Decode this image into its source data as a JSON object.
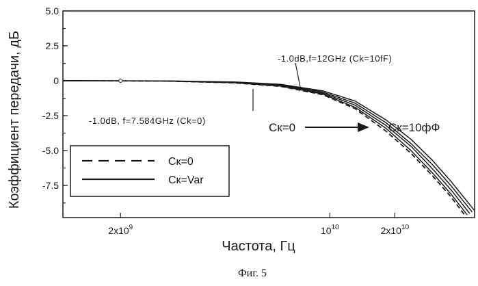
{
  "chart_data": {
    "type": "line",
    "title": "",
    "xlabel": "Частота, Гц",
    "ylabel": "Коэффициент передачи, дБ",
    "xscale": "log",
    "xlim": [
      2900000000.0,
      57000000000.0
    ],
    "ylim": [
      -9.8,
      5.0
    ],
    "grid": false,
    "yticks": [
      5.0,
      2.5,
      0,
      -2.5,
      -5.0,
      -7.5
    ],
    "ytick_labels": [
      "5.0",
      "2.5",
      "0",
      "-2.5",
      "-5.0",
      "-7.5"
    ],
    "xticks": [
      {
        "value": 4400000000.0,
        "base": "2x10",
        "exp": "9"
      },
      {
        "value": 20000000000.0,
        "base": "10",
        "exp": "10"
      },
      {
        "value": 32000000000.0,
        "base": "2x10",
        "exp": "10"
      }
    ],
    "legend": {
      "placement": "lower-left",
      "entries": [
        {
          "label": "Cк=0",
          "style": "dashed"
        },
        {
          "label": "Cк=Var",
          "style": "solid"
        }
      ]
    },
    "annotations": {
      "left": "-1.0dB, f=7.584GHz (Ck=0)",
      "right": "-1.0dB,f=12GHz (Ck=10fF)",
      "arrow_from": "Cк=0",
      "arrow_to": "Cк=10фФ"
    },
    "series": [
      {
        "style": "dashed",
        "f3db": 19300000000.0,
        "points": [
          [
            2900000000.0,
            0
          ],
          [
            6000000000.0,
            -0.02
          ],
          [
            10000000000.0,
            -0.15
          ],
          [
            14000000000.0,
            -0.4
          ],
          [
            19000000000.0,
            -1.0
          ],
          [
            24000000000.0,
            -2.0
          ],
          [
            30000000000.0,
            -3.6
          ],
          [
            36000000000.0,
            -5.2
          ],
          [
            42000000000.0,
            -6.8
          ],
          [
            48000000000.0,
            -8.3
          ],
          [
            53000000000.0,
            -9.6
          ]
        ]
      },
      {
        "style": "solid",
        "f3db": 19700000000.0,
        "points": [
          [
            2900000000.0,
            0
          ],
          [
            6000000000.0,
            -0.02
          ],
          [
            10000000000.0,
            -0.14
          ],
          [
            14000000000.0,
            -0.38
          ],
          [
            19000000000.0,
            -0.95
          ],
          [
            24000000000.0,
            -1.9
          ],
          [
            30000000000.0,
            -3.4
          ],
          [
            36000000000.0,
            -5.0
          ],
          [
            42000000000.0,
            -6.6
          ],
          [
            48000000000.0,
            -8.1
          ],
          [
            54000000000.0,
            -9.6
          ]
        ]
      },
      {
        "style": "solid",
        "f3db": 20300000000.0,
        "points": [
          [
            2900000000.0,
            0
          ],
          [
            6000000000.0,
            -0.02
          ],
          [
            10000000000.0,
            -0.12
          ],
          [
            14000000000.0,
            -0.34
          ],
          [
            19000000000.0,
            -0.88
          ],
          [
            24000000000.0,
            -1.75
          ],
          [
            30000000000.0,
            -3.2
          ],
          [
            36000000000.0,
            -4.7
          ],
          [
            42000000000.0,
            -6.3
          ],
          [
            48000000000.0,
            -7.8
          ],
          [
            55000000000.0,
            -9.5
          ]
        ]
      },
      {
        "style": "solid",
        "f3db": 20900000000.0,
        "points": [
          [
            2900000000.0,
            0
          ],
          [
            6000000000.0,
            -0.02
          ],
          [
            10000000000.0,
            -0.1
          ],
          [
            14000000000.0,
            -0.3
          ],
          [
            19000000000.0,
            -0.8
          ],
          [
            24000000000.0,
            -1.6
          ],
          [
            30000000000.0,
            -3.0
          ],
          [
            36000000000.0,
            -4.5
          ],
          [
            42000000000.0,
            -6.0
          ],
          [
            48000000000.0,
            -7.5
          ],
          [
            56000000000.0,
            -9.4
          ]
        ]
      },
      {
        "style": "solid",
        "f3db": 21500000000.0,
        "points": [
          [
            2900000000.0,
            0
          ],
          [
            6000000000.0,
            -0.01
          ],
          [
            10000000000.0,
            -0.08
          ],
          [
            14000000000.0,
            -0.26
          ],
          [
            19000000000.0,
            -0.72
          ],
          [
            24000000000.0,
            -1.45
          ],
          [
            30000000000.0,
            -2.8
          ],
          [
            36000000000.0,
            -4.2
          ],
          [
            42000000000.0,
            -5.7
          ],
          [
            48000000000.0,
            -7.2
          ],
          [
            57000000000.0,
            -9.3
          ]
        ]
      }
    ]
  },
  "caption": "Фиг. 5"
}
